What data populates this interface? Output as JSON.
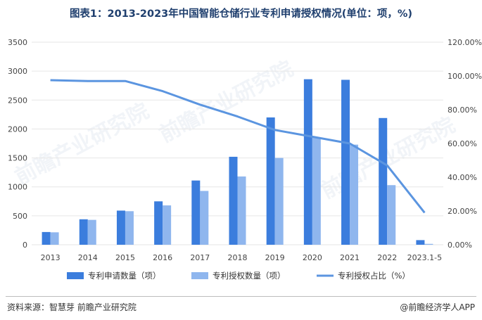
{
  "title": "图表1：2013-2023年中国智能仓储行业专利申请授权情况(单位：项，%)",
  "watermark": "前瞻产业研究院",
  "footer": {
    "source": "资料来源：智慧芽 前瞻产业研究院",
    "brand": "@前瞻经济学人APP",
    "brand_icon": "copyright-circle-icon"
  },
  "colors": {
    "applications": "#3b7ddd",
    "grants": "#8fb6ee",
    "ratio": "#5b95e0",
    "grid": "#e6e6e6",
    "axis_text": "#444444"
  },
  "chart_data": {
    "type": "bar",
    "categories": [
      "2013",
      "2014",
      "2015",
      "2016",
      "2017",
      "2018",
      "2019",
      "2020",
      "2021",
      "2022",
      "2023.1-5"
    ],
    "series": [
      {
        "name": "专利申请数量（项）",
        "type": "bar",
        "axis": "left",
        "values": [
          220,
          440,
          590,
          750,
          1110,
          1520,
          2200,
          2860,
          2850,
          2190,
          80
        ]
      },
      {
        "name": "专利授权数量（项）",
        "type": "bar",
        "axis": "left",
        "values": [
          215,
          430,
          580,
          680,
          930,
          1180,
          1500,
          1850,
          1730,
          1030,
          15
        ]
      },
      {
        "name": "专利授权占比（%）",
        "type": "line",
        "axis": "right",
        "values": [
          97.5,
          97.0,
          97.0,
          91.0,
          83.0,
          76.0,
          68.0,
          64.0,
          60.0,
          47.0,
          19.0
        ]
      }
    ],
    "y_left": {
      "min": 0,
      "max": 3500,
      "step": 500,
      "ticks": [
        "0",
        "500",
        "1000",
        "1500",
        "2000",
        "2500",
        "3000",
        "3500"
      ]
    },
    "y_right": {
      "min": 0,
      "max": 120,
      "step": 20,
      "ticks": [
        "0.00%",
        "20.00%",
        "40.00%",
        "60.00%",
        "80.00%",
        "100.00%",
        "120.00%"
      ]
    },
    "legend": "bottom",
    "grid": true
  }
}
